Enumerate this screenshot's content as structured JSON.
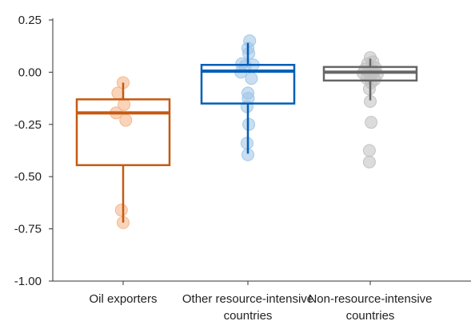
{
  "chart_data": {
    "type": "box",
    "ylim": [
      -1.0,
      0.25
    ],
    "yticks": [
      0.25,
      0.0,
      -0.25,
      -0.5,
      -0.75,
      -1.0
    ],
    "ytick_labels": [
      "0.25",
      "0.00",
      "-0.25",
      "-0.50",
      "-0.75",
      "-1.00"
    ],
    "categories": [
      {
        "lines": [
          "Oil exporters"
        ]
      },
      {
        "lines": [
          "Other resource-intensive",
          "countries"
        ]
      },
      {
        "lines": [
          "Non-resource-intensive",
          "countries"
        ]
      }
    ],
    "series": [
      {
        "color": "#c55a11",
        "dot_color": "#f4b183",
        "box": {
          "q1": -0.445,
          "median": -0.195,
          "q3": -0.13,
          "whisker_low": -0.72,
          "whisker_high": -0.05
        },
        "points": [
          {
            "x": 0.0,
            "y": -0.05
          },
          {
            "x": -0.3,
            "y": -0.1
          },
          {
            "x": 0.05,
            "y": -0.155
          },
          {
            "x": -0.4,
            "y": -0.195
          },
          {
            "x": 0.15,
            "y": -0.23
          },
          {
            "x": -0.1,
            "y": -0.66
          },
          {
            "x": 0.0,
            "y": -0.72
          }
        ]
      },
      {
        "color": "#005eb8",
        "dot_color": "#9dc3e6",
        "box": {
          "q1": -0.15,
          "median": 0.005,
          "q3": 0.035,
          "whisker_low": -0.39,
          "whisker_high": 0.14
        },
        "points": [
          {
            "x": 0.1,
            "y": 0.15
          },
          {
            "x": 0.0,
            "y": 0.115
          },
          {
            "x": 0.05,
            "y": 0.09
          },
          {
            "x": -0.35,
            "y": 0.04
          },
          {
            "x": 0.3,
            "y": 0.035
          },
          {
            "x": -0.15,
            "y": 0.03
          },
          {
            "x": -0.4,
            "y": 0.0
          },
          {
            "x": 0.2,
            "y": -0.03
          },
          {
            "x": 0.0,
            "y": -0.1
          },
          {
            "x": 0.02,
            "y": -0.125
          },
          {
            "x": -0.05,
            "y": -0.165
          },
          {
            "x": 0.05,
            "y": -0.25
          },
          {
            "x": -0.05,
            "y": -0.34
          },
          {
            "x": 0.0,
            "y": -0.395
          }
        ]
      },
      {
        "color": "#666666",
        "dot_color": "#bfbfbf",
        "box": {
          "q1": -0.04,
          "median": 0.0,
          "q3": 0.025,
          "whisker_low": -0.135,
          "whisker_high": 0.065
        },
        "points": [
          {
            "x": 0.0,
            "y": 0.07
          },
          {
            "x": 0.15,
            "y": 0.05
          },
          {
            "x": -0.15,
            "y": 0.04
          },
          {
            "x": 0.3,
            "y": 0.02
          },
          {
            "x": -0.3,
            "y": 0.015
          },
          {
            "x": 0.05,
            "y": 0.01
          },
          {
            "x": -0.1,
            "y": 0.005
          },
          {
            "x": 0.2,
            "y": 0.0
          },
          {
            "x": -0.4,
            "y": -0.005
          },
          {
            "x": 0.4,
            "y": -0.01
          },
          {
            "x": 0.0,
            "y": -0.02
          },
          {
            "x": -0.2,
            "y": -0.03
          },
          {
            "x": 0.25,
            "y": -0.035
          },
          {
            "x": 0.05,
            "y": -0.05
          },
          {
            "x": -0.05,
            "y": -0.08
          },
          {
            "x": 0.0,
            "y": -0.14
          },
          {
            "x": 0.05,
            "y": -0.24
          },
          {
            "x": -0.05,
            "y": -0.375
          },
          {
            "x": -0.05,
            "y": -0.43
          }
        ]
      }
    ]
  }
}
